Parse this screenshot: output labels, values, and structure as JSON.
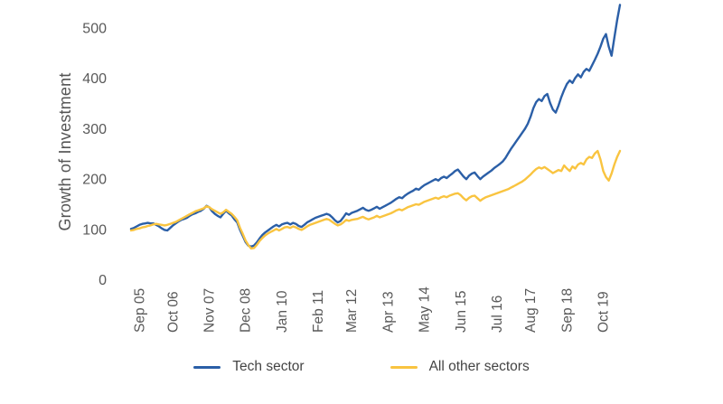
{
  "colors": {
    "background": "#ffffff",
    "tick_text": "#595959",
    "axis_title_text": "#555555",
    "legend_text": "#444444"
  },
  "chart_data": {
    "type": "line",
    "title": "",
    "xlabel": "",
    "ylabel": "Growth of Investment",
    "yticks": [
      0,
      100,
      200,
      300,
      400,
      500
    ],
    "ylim": [
      0,
      560
    ],
    "grid": "off",
    "axis_lines": "off",
    "legend_position": "bottom-center",
    "xtick_labels": [
      "Sep 05",
      "Oct 06",
      "Nov 07",
      "Dec 08",
      "Jan 10",
      "Feb 11",
      "Mar 12",
      "Apr 13",
      "May 14",
      "Jun 15",
      "Jul 16",
      "Aug 17",
      "Sep 18",
      "Oct 19"
    ],
    "xtick_indices": [
      3,
      15,
      28,
      41,
      54,
      67,
      79,
      92,
      105,
      118,
      131,
      143,
      156,
      169
    ],
    "x_unit": "monthly",
    "series": [
      {
        "name": "Tech sector",
        "color": "#2b5fa7",
        "values": [
          100,
          102,
          105,
          108,
          110,
          111,
          112,
          111,
          111,
          108,
          105,
          101,
          98,
          97,
          102,
          107,
          111,
          115,
          118,
          120,
          122,
          126,
          129,
          131,
          134,
          136,
          140,
          146,
          143,
          135,
          130,
          126,
          123,
          130,
          136,
          131,
          127,
          119,
          113,
          98,
          86,
          74,
          67,
          65,
          67,
          73,
          81,
          88,
          93,
          97,
          101,
          105,
          108,
          105,
          109,
          111,
          112,
          109,
          112,
          110,
          106,
          104,
          108,
          113,
          116,
          119,
          122,
          124,
          126,
          128,
          130,
          128,
          123,
          117,
          113,
          116,
          123,
          131,
          128,
          132,
          134,
          136,
          139,
          142,
          138,
          136,
          138,
          141,
          144,
          140,
          143,
          146,
          149,
          152,
          156,
          160,
          163,
          161,
          166,
          170,
          173,
          176,
          180,
          178,
          183,
          187,
          190,
          193,
          196,
          199,
          196,
          201,
          204,
          201,
          206,
          210,
          215,
          218,
          211,
          204,
          199,
          206,
          210,
          212,
          205,
          199,
          204,
          208,
          212,
          216,
          221,
          225,
          229,
          234,
          241,
          250,
          259,
          267,
          275,
          283,
          291,
          299,
          309,
          323,
          340,
          352,
          358,
          354,
          364,
          368,
          350,
          337,
          331,
          345,
          362,
          376,
          388,
          395,
          390,
          400,
          407,
          401,
          412,
          418,
          414,
          425,
          436,
          448,
          462,
          478,
          487,
          462,
          444,
          480,
          515,
          545
        ]
      },
      {
        "name": "All other sectors",
        "color": "#f9c440",
        "values": [
          97,
          98,
          100,
          101,
          103,
          104,
          106,
          107,
          109,
          110,
          109,
          108,
          107,
          108,
          110,
          112,
          114,
          117,
          120,
          123,
          126,
          129,
          132,
          135,
          137,
          139,
          141,
          145,
          143,
          139,
          136,
          133,
          130,
          133,
          138,
          134,
          130,
          124,
          117,
          102,
          90,
          77,
          68,
          61,
          62,
          68,
          76,
          82,
          87,
          91,
          94,
          97,
          100,
          97,
          100,
          103,
          104,
          102,
          105,
          103,
          100,
          98,
          101,
          105,
          108,
          110,
          112,
          114,
          116,
          118,
          120,
          118,
          114,
          110,
          107,
          109,
          113,
          118,
          116,
          118,
          119,
          120,
          122,
          124,
          121,
          119,
          121,
          123,
          126,
          123,
          125,
          127,
          129,
          131,
          134,
          137,
          139,
          137,
          140,
          143,
          145,
          147,
          149,
          148,
          151,
          154,
          156,
          158,
          160,
          162,
          160,
          163,
          165,
          163,
          166,
          168,
          170,
          171,
          167,
          161,
          157,
          162,
          165,
          166,
          161,
          156,
          160,
          163,
          165,
          167,
          169,
          171,
          173,
          175,
          177,
          179,
          182,
          185,
          188,
          191,
          194,
          198,
          203,
          208,
          214,
          219,
          222,
          220,
          223,
          219,
          215,
          211,
          214,
          217,
          215,
          226,
          220,
          215,
          224,
          220,
          228,
          231,
          228,
          238,
          243,
          241,
          250,
          255,
          238,
          215,
          203,
          196,
          210,
          228,
          243,
          255
        ]
      }
    ]
  },
  "legend": {
    "tech_label": "Tech sector",
    "other_label": "All other sectors"
  }
}
